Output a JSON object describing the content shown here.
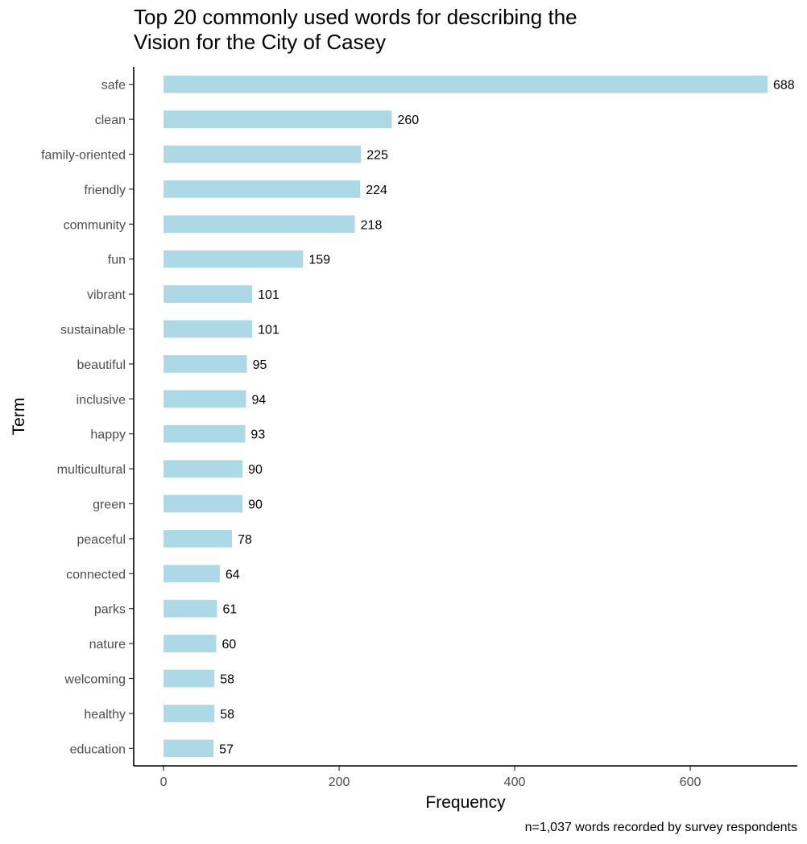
{
  "chart_data": {
    "type": "bar",
    "orientation": "horizontal",
    "title": "Top 20 commonly used words for describing the Vision for the City of Casey",
    "title_lines": [
      "Top 20 commonly used words for describing the",
      "Vision for the City of Casey"
    ],
    "xlabel": "Frequency",
    "ylabel": "Term",
    "caption": "n=1,037 words recorded by survey respondents",
    "categories": [
      "safe",
      "clean",
      "family-oriented",
      "friendly",
      "community",
      "fun",
      "vibrant",
      "sustainable",
      "beautiful",
      "inclusive",
      "happy",
      "multicultural",
      "green",
      "peaceful",
      "connected",
      "parks",
      "nature",
      "welcoming",
      "healthy",
      "education"
    ],
    "values": [
      688,
      260,
      225,
      224,
      218,
      159,
      101,
      101,
      95,
      94,
      93,
      90,
      90,
      78,
      64,
      61,
      60,
      58,
      58,
      57
    ],
    "xlim": [
      -34,
      722
    ],
    "x_ticks": [
      0,
      200,
      400,
      600
    ],
    "grid": false,
    "legend": "none",
    "bar_color": "#add8e6"
  }
}
